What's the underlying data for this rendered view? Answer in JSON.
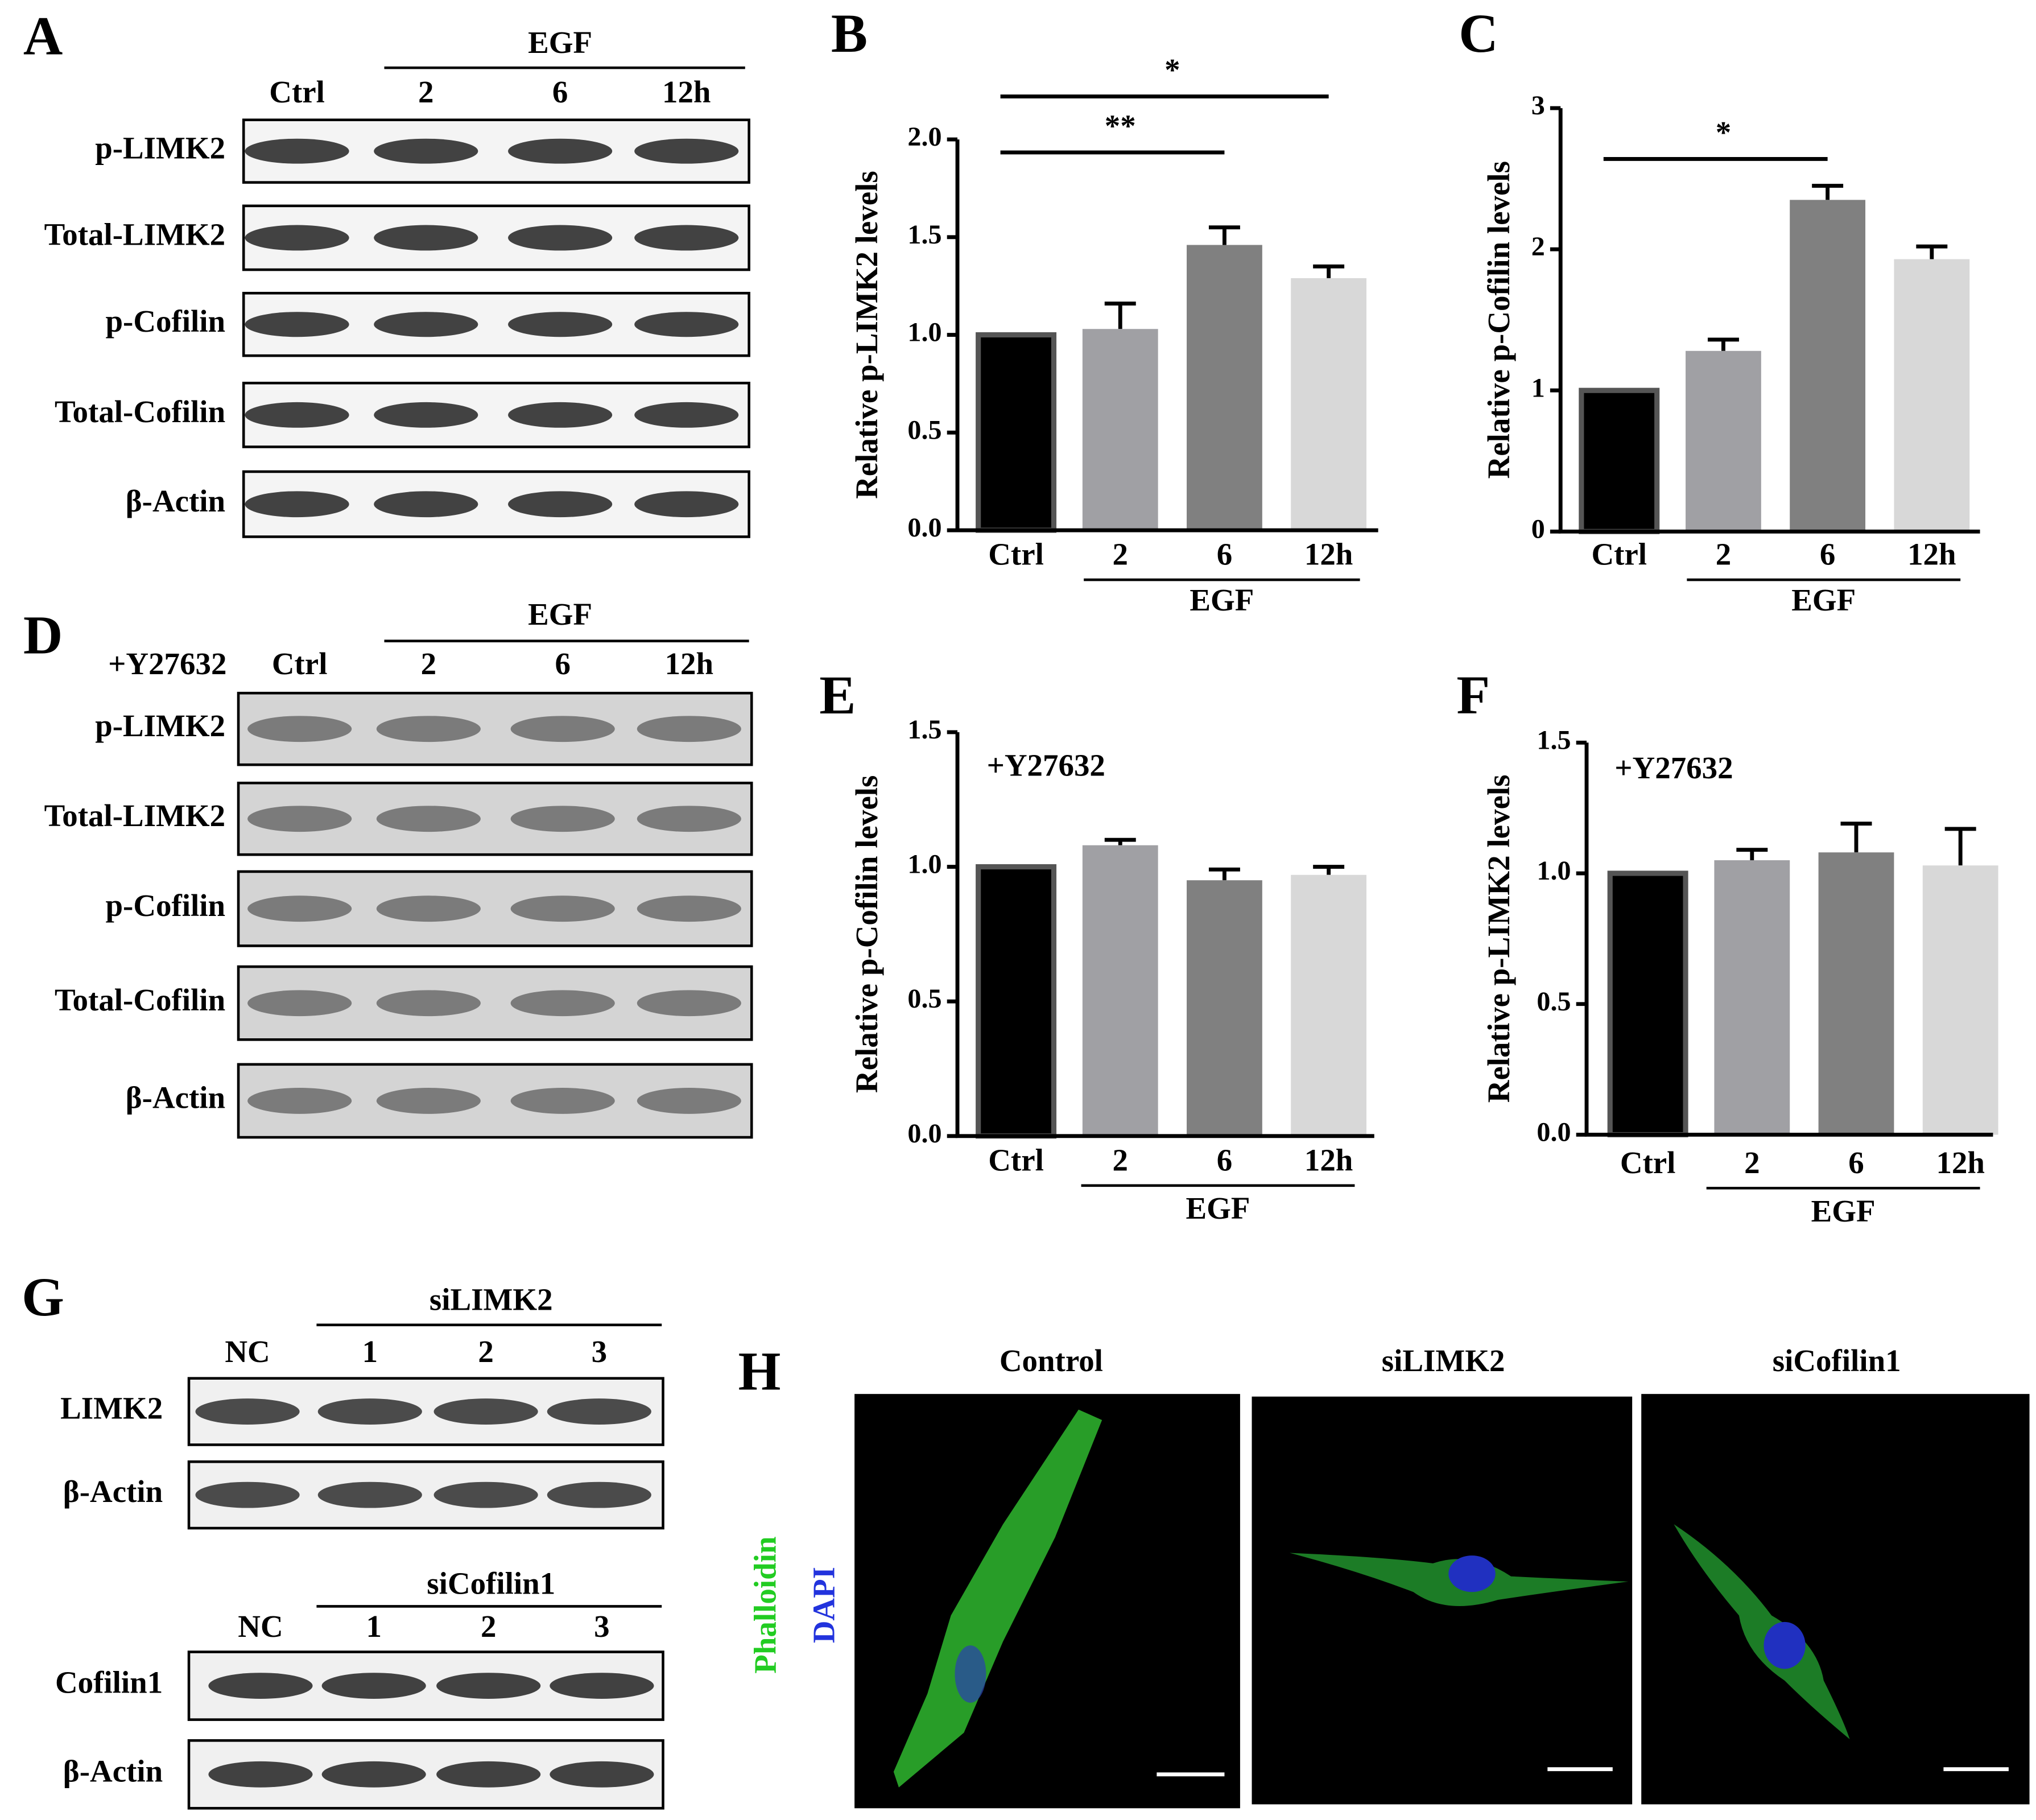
{
  "panels": {
    "A": {
      "letter": "A",
      "group": "EGF",
      "lanes": [
        "Ctrl",
        "2",
        "6",
        "12h"
      ],
      "rows": [
        "p-LIMK2",
        "Total-LIMK2",
        "p-Cofilin",
        "Total-Cofilin",
        "β-Actin"
      ]
    },
    "D": {
      "letter": "D",
      "treatment": "+Y27632",
      "group": "EGF",
      "lanes": [
        "Ctrl",
        "2",
        "6",
        "12h"
      ],
      "rows": [
        "p-LIMK2",
        "Total-LIMK2",
        "p-Cofilin",
        "Total-Cofilin",
        "β-Actin"
      ]
    },
    "G": {
      "letter": "G",
      "blots": [
        {
          "group": "siLIMK2",
          "lanes": [
            "NC",
            "1",
            "2",
            "3"
          ],
          "rows": [
            "LIMK2",
            "β-Actin"
          ]
        },
        {
          "group": "siCofilin1",
          "lanes": [
            "NC",
            "1",
            "2",
            "3"
          ],
          "rows": [
            "Cofilin1",
            "β-Actin"
          ]
        }
      ]
    },
    "H": {
      "letter": "H",
      "images": [
        "Control",
        "siLIMK2",
        "siCofilin1"
      ],
      "stains": [
        "Phalloidin",
        "DAPI"
      ]
    }
  },
  "chart_data": [
    {
      "type": "bar",
      "letter": "B",
      "ylabel": "Relative p-LIMK2 levels",
      "categories": [
        "Ctrl",
        "2",
        "6",
        "12h"
      ],
      "group_label": "EGF",
      "values": [
        1.0,
        1.03,
        1.46,
        1.29
      ],
      "errors": [
        0,
        0.13,
        0.09,
        0.06
      ],
      "colors": [
        "#000000",
        "#a0a0a4",
        "#808080",
        "#d8d8d8"
      ],
      "ylim": [
        0,
        2.0
      ],
      "yticks": [
        {
          "value": 0,
          "label": "0.0"
        },
        {
          "value": 0.5,
          "label": "0.5"
        },
        {
          "value": 1,
          "label": "1.0"
        },
        {
          "value": 1.5,
          "label": "1.5"
        },
        {
          "value": 2,
          "label": "2.0"
        }
      ],
      "annotations": [
        "**",
        "*"
      ]
    },
    {
      "type": "bar",
      "letter": "C",
      "ylabel": "Relative p-Cofilin levels",
      "categories": [
        "Ctrl",
        "2",
        "6",
        "12h"
      ],
      "group_label": "EGF",
      "values": [
        1.0,
        1.28,
        2.35,
        1.93
      ],
      "errors": [
        0,
        0.08,
        0.1,
        0.09
      ],
      "colors": [
        "#000000",
        "#a0a0a4",
        "#808080",
        "#d8d8d8"
      ],
      "ylim": [
        0,
        3
      ],
      "yticks": [
        0,
        1,
        2,
        3
      ],
      "annotations": [
        "*"
      ]
    },
    {
      "type": "bar",
      "letter": "E",
      "ylabel": "Relative p-Cofilin levels",
      "categories": [
        "Ctrl",
        "2",
        "6",
        "12h"
      ],
      "group_label": "EGF",
      "values": [
        1.0,
        1.08,
        0.95,
        0.97
      ],
      "errors": [
        0,
        0.02,
        0.04,
        0.03
      ],
      "colors": [
        "#000000",
        "#a0a0a4",
        "#808080",
        "#d8d8d8"
      ],
      "ylim": [
        0,
        1.5
      ],
      "yticks": [
        {
          "value": 0,
          "label": "0.0"
        },
        {
          "value": 0.5,
          "label": "0.5"
        },
        {
          "value": 1,
          "label": "1.0"
        },
        {
          "value": 1.5,
          "label": "1.5"
        }
      ],
      "inset_label": "+Y27632"
    },
    {
      "type": "bar",
      "letter": "F",
      "ylabel": "Relative p-LIMK2 levels",
      "categories": [
        "Ctrl",
        "2",
        "6",
        "12h"
      ],
      "group_label": "EGF",
      "values": [
        1.0,
        1.05,
        1.08,
        1.03
      ],
      "errors": [
        0,
        0.04,
        0.11,
        0.14
      ],
      "colors": [
        "#000000",
        "#a0a0a4",
        "#808080",
        "#d8d8d8"
      ],
      "ylim": [
        0,
        1.5
      ],
      "yticks": [
        {
          "value": 0,
          "label": "0.0"
        },
        {
          "value": 0.5,
          "label": "0.5"
        },
        {
          "value": 1,
          "label": "1.0"
        },
        {
          "value": 1.5,
          "label": "1.5"
        }
      ],
      "inset_label": "+Y27632"
    }
  ]
}
